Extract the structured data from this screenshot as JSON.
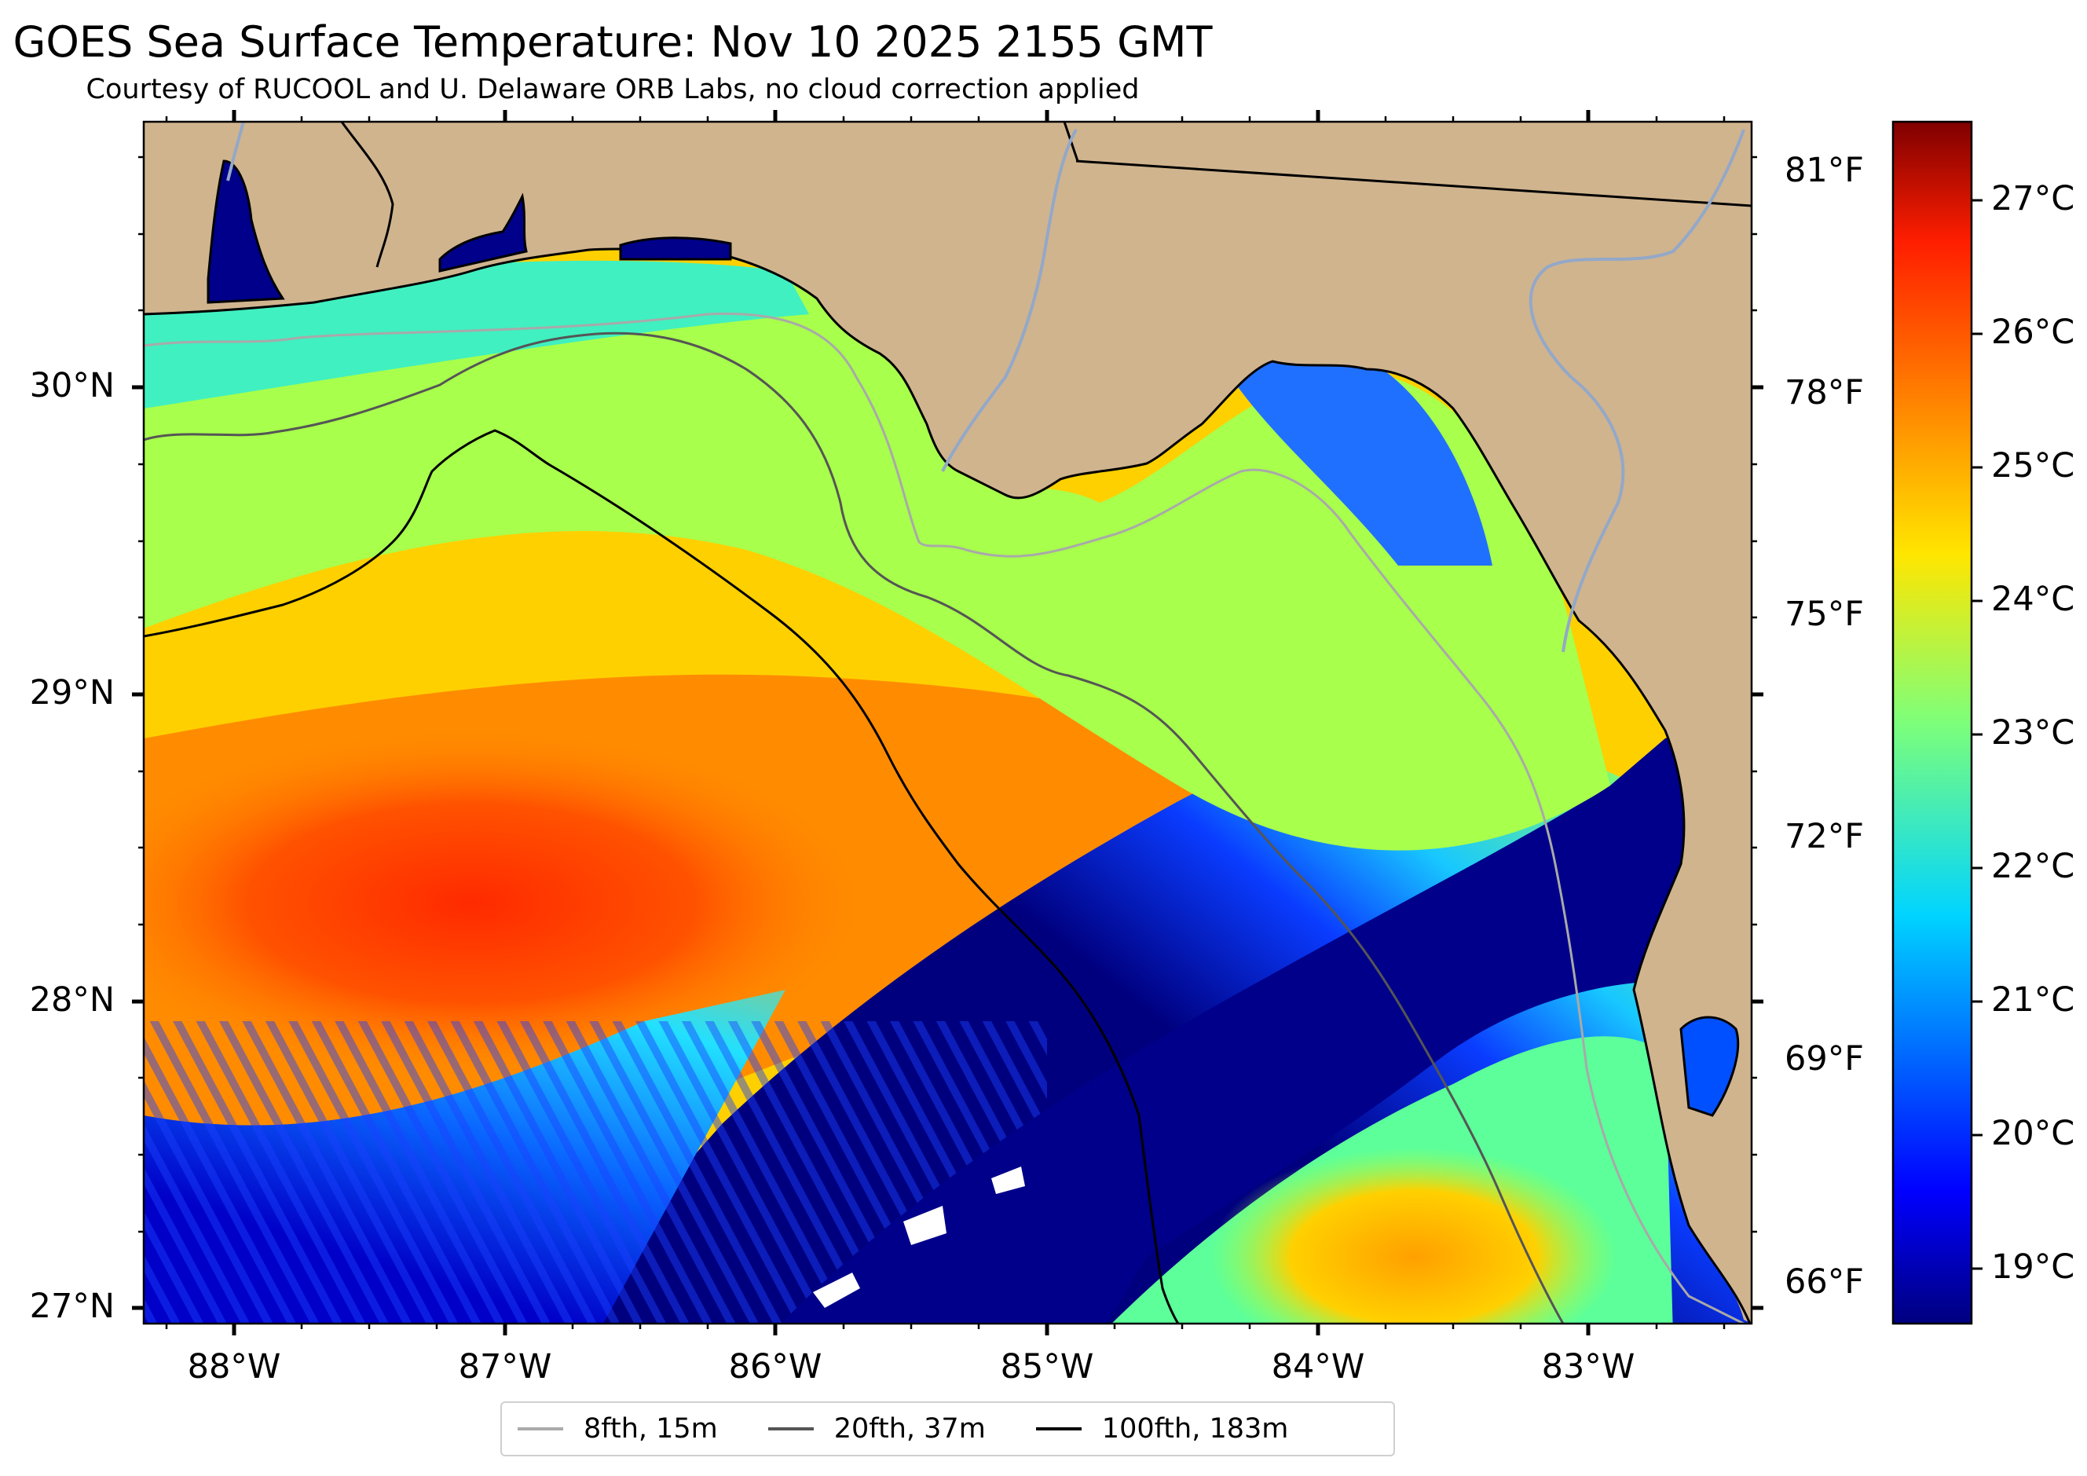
{
  "title": "GOES Sea Surface Temperature: Nov 10 2025 2155 GMT",
  "subtitle": "Courtesy of RUCOOL and U. Delaware ORB Labs, no cloud correction applied",
  "map": {
    "lat_labels": [
      "30°N",
      "29°N",
      "28°N",
      "27°N"
    ],
    "lon_labels": [
      "88°W",
      "87°W",
      "86°W",
      "85°W",
      "84°W",
      "83°W"
    ],
    "extent": {
      "lon_min": -88.33,
      "lon_max": -82.38,
      "lat_min": 26.93,
      "lat_max": 30.86
    },
    "colors": {
      "land": "#d0b48e",
      "coastline": "#000000",
      "river": "#93a8c8",
      "no_data": "#ffffff"
    }
  },
  "fahrenheit_labels": [
    "81°F",
    "78°F",
    "75°F",
    "72°F",
    "69°F",
    "66°F"
  ],
  "colorbar": {
    "colormap": "jet",
    "labels": [
      "27°C",
      "26°C",
      "25°C",
      "24°C",
      "23°C",
      "22°C",
      "21°C",
      "20°C",
      "19°C"
    ]
  },
  "legend": {
    "items": [
      {
        "label": "8fth, 15m",
        "color": "#aaaaaa"
      },
      {
        "label": "20fth, 37m",
        "color": "#555555"
      },
      {
        "label": "100fth, 183m",
        "color": "#000000"
      }
    ]
  }
}
